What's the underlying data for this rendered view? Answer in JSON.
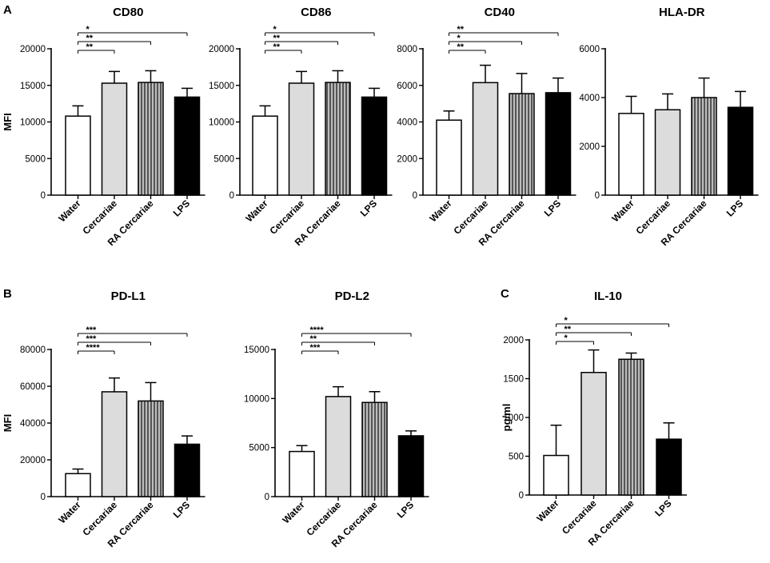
{
  "colors": {
    "water": "#ffffff",
    "cercariae": "#dcdcdc",
    "ra_cercariae_stripe_dark": "#555555",
    "ra_cercariae_stripe_light": "#bdbdbd",
    "lps": "#000000",
    "axis": "#000000"
  },
  "panel_letters": [
    "A",
    "B",
    "C"
  ],
  "chart_data": [
    {
      "type": "bar",
      "panel": "A",
      "title": "CD80",
      "ylabel": "MFI",
      "categories": [
        "Water",
        "Cercariae",
        "RA Cercariae",
        "LPS"
      ],
      "values": [
        10800,
        15300,
        15400,
        13400
      ],
      "errors": [
        1400,
        1600,
        1600,
        1200
      ],
      "ylim": [
        0,
        20000
      ],
      "yticks": [
        "0",
        "5000",
        "10000",
        "15000",
        "20000"
      ],
      "significance": [
        {
          "from": 0,
          "to": 3,
          "label": "*"
        },
        {
          "from": 0,
          "to": 2,
          "label": "**"
        },
        {
          "from": 0,
          "to": 1,
          "label": "**"
        }
      ]
    },
    {
      "type": "bar",
      "panel": "A",
      "title": "CD86",
      "ylabel": "",
      "categories": [
        "Water",
        "Cercariae",
        "RA Cercariae",
        "LPS"
      ],
      "values": [
        10800,
        15300,
        15400,
        13400
      ],
      "errors": [
        1400,
        1600,
        1600,
        1200
      ],
      "ylim": [
        0,
        20000
      ],
      "yticks": [
        "0",
        "5000",
        "10000",
        "15000",
        "20000"
      ],
      "significance": [
        {
          "from": 0,
          "to": 3,
          "label": "*"
        },
        {
          "from": 0,
          "to": 2,
          "label": "**"
        },
        {
          "from": 0,
          "to": 1,
          "label": "**"
        }
      ]
    },
    {
      "type": "bar",
      "panel": "A",
      "title": "CD40",
      "ylabel": "",
      "categories": [
        "Water",
        "Cercariae",
        "RA Cercariae",
        "LPS"
      ],
      "values": [
        4100,
        6150,
        5550,
        5600
      ],
      "errors": [
        500,
        950,
        1100,
        800
      ],
      "ylim": [
        0,
        8000
      ],
      "yticks": [
        "0",
        "2000",
        "4000",
        "6000",
        "8000"
      ],
      "significance": [
        {
          "from": 0,
          "to": 3,
          "label": "**"
        },
        {
          "from": 0,
          "to": 2,
          "label": "*"
        },
        {
          "from": 0,
          "to": 1,
          "label": "**"
        }
      ]
    },
    {
      "type": "bar",
      "panel": "A",
      "title": "HLA-DR",
      "ylabel": "",
      "categories": [
        "Water",
        "Cercariae",
        "RA Cercariae",
        "LPS"
      ],
      "values": [
        3350,
        3500,
        4000,
        3600
      ],
      "errors": [
        700,
        650,
        800,
        650
      ],
      "ylim": [
        0,
        6000
      ],
      "yticks": [
        "0",
        "2000",
        "4000",
        "6000"
      ],
      "significance": []
    },
    {
      "type": "bar",
      "panel": "B",
      "title": "PD-L1",
      "ylabel": "MFI",
      "categories": [
        "Water",
        "Cercariae",
        "RA Cercariae",
        "LPS"
      ],
      "values": [
        12500,
        57000,
        52000,
        28500
      ],
      "errors": [
        2500,
        7500,
        10000,
        4500
      ],
      "ylim": [
        0,
        80000
      ],
      "yticks": [
        "0",
        "20000",
        "40000",
        "60000",
        "80000"
      ],
      "significance": [
        {
          "from": 0,
          "to": 3,
          "label": "***"
        },
        {
          "from": 0,
          "to": 2,
          "label": "***"
        },
        {
          "from": 0,
          "to": 1,
          "label": "****"
        }
      ]
    },
    {
      "type": "bar",
      "panel": "B",
      "title": "PD-L2",
      "ylabel": "",
      "categories": [
        "Water",
        "Cercariae",
        "RA Cercariae",
        "LPS"
      ],
      "values": [
        4600,
        10200,
        9600,
        6200
      ],
      "errors": [
        600,
        1000,
        1100,
        500
      ],
      "ylim": [
        0,
        15000
      ],
      "yticks": [
        "0",
        "5000",
        "10000",
        "15000"
      ],
      "significance": [
        {
          "from": 0,
          "to": 3,
          "label": "****"
        },
        {
          "from": 0,
          "to": 2,
          "label": "**"
        },
        {
          "from": 0,
          "to": 1,
          "label": "***"
        }
      ]
    },
    {
      "type": "bar",
      "panel": "C",
      "title": "IL-10",
      "ylabel": "pg/ml",
      "categories": [
        "Water",
        "Cercariae",
        "RA Cercariae",
        "LPS"
      ],
      "values": [
        510,
        1580,
        1750,
        720
      ],
      "errors": [
        390,
        290,
        80,
        210
      ],
      "ylim": [
        0,
        2000
      ],
      "yticks": [
        "0",
        "500",
        "1000",
        "1500",
        "2000"
      ],
      "significance": [
        {
          "from": 0,
          "to": 3,
          "label": "*"
        },
        {
          "from": 0,
          "to": 2,
          "label": "**"
        },
        {
          "from": 0,
          "to": 1,
          "label": "*"
        }
      ]
    }
  ]
}
